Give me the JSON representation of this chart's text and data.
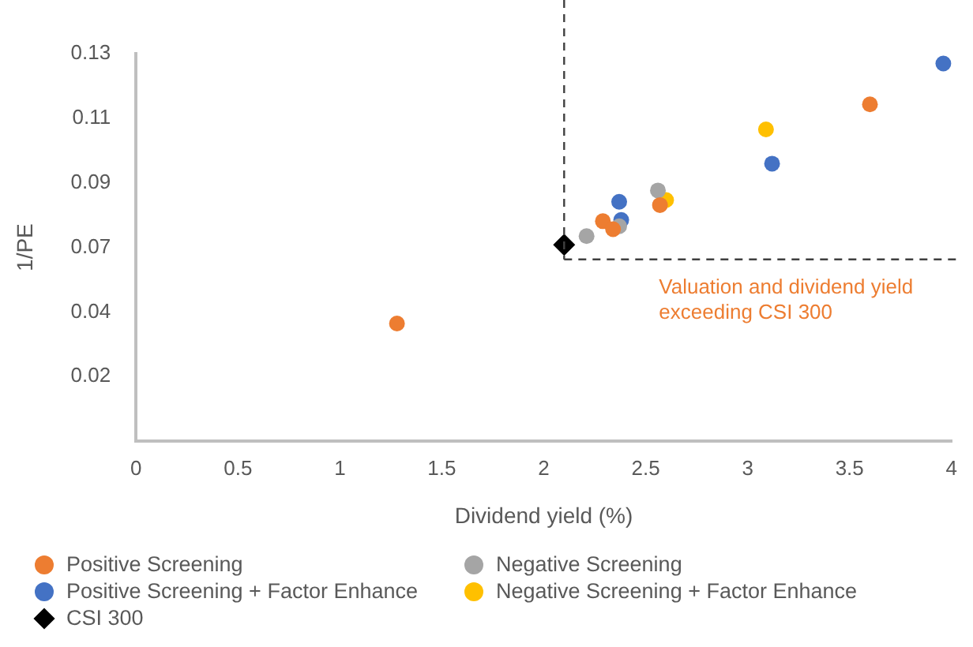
{
  "chart_data": {
    "type": "scatter",
    "xlabel": "Dividend yield (%)",
    "ylabel": "1/PE",
    "xlim": [
      0,
      4
    ],
    "xticks": [
      0,
      0.5,
      1,
      1.5,
      2,
      2.5,
      3,
      3.5,
      4
    ],
    "ylim": [
      0,
      0.13
    ],
    "yticks": [
      {
        "value": 0.021667,
        "label": "0.02"
      },
      {
        "value": 0.043333,
        "label": "0.04"
      },
      {
        "value": 0.065,
        "label": "0.07"
      },
      {
        "value": 0.086667,
        "label": "0.09"
      },
      {
        "value": 0.108333,
        "label": "0.11"
      },
      {
        "value": 0.13,
        "label": "0.13"
      }
    ],
    "grid": false,
    "legend": "bottom",
    "marker": "circle",
    "series": [
      {
        "name": "Positive Screening",
        "color": "#ed7d31",
        "x": [
          1.28,
          2.29,
          2.34,
          2.57,
          3.6
        ],
        "values": [
          0.0395,
          0.0738,
          0.0711,
          0.0792,
          0.113
        ]
      },
      {
        "name": "Negative Screening",
        "color": "#a5a5a5",
        "x": [
          2.21,
          2.37,
          2.56
        ],
        "values": [
          0.0688,
          0.0721,
          0.0841
        ]
      },
      {
        "name": "Positive Screening + Factor Enhance",
        "color": "#4472c4",
        "x": [
          2.37,
          2.38,
          3.12,
          3.96
        ],
        "values": [
          0.0803,
          0.0742,
          0.0931,
          0.1267
        ]
      },
      {
        "name": "Negative Screening + Factor Enhance",
        "color": "#ffc000",
        "x": [
          2.6,
          3.09
        ],
        "values": [
          0.0809,
          0.1046
        ]
      },
      {
        "name": "CSI 300",
        "color": "#000000",
        "marker": "diamond",
        "x": [
          2.1
        ],
        "values": [
          0.0659
        ]
      }
    ],
    "ref_lines": [
      {
        "axis": "x",
        "value": 2.1,
        "color": "#404040",
        "line_style": "dashed"
      },
      {
        "axis": "y",
        "value": 0.061,
        "color": "#404040",
        "line_style": "dashed"
      }
    ],
    "annotations": [
      "Valuation and dividend yield\nexceeding CSI 300"
    ]
  }
}
